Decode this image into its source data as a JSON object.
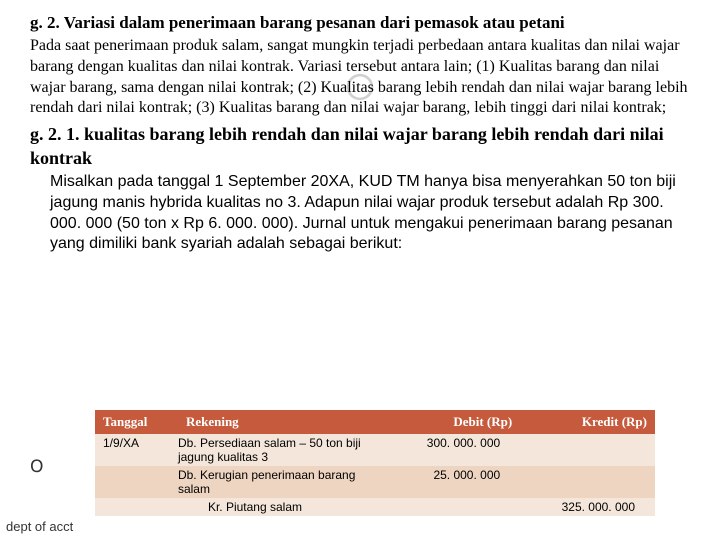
{
  "watermark_glyph": "○",
  "heading1": "g. 2. Variasi dalam penerimaan barang pesanan dari pemasok atau petani",
  "para1": "Pada saat penerimaan produk salam, sangat mungkin terjadi perbedaan antara kualitas dan nilai wajar barang dengan kualitas dan nilai kontrak. Variasi tersebut antara lain; (1) Kualitas barang dan nilai wajar barang, sama dengan nilai kontrak; (2) Kualitas barang lebih rendah dan nilai wajar barang lebih rendah dari nilai kontrak; (3) Kualitas barang dan nilai wajar barang, lebih tinggi dari nilai kontrak;",
  "heading2": "g. 2. 1. kualitas barang lebih rendah dan nilai wajar barang lebih rendah dari nilai kontrak",
  "para2": "Misalkan pada tanggal 1 September 20XA, KUD TM hanya bisa menyerahkan 50 ton biji jagung manis hybrida kualitas no 3. Adapun nilai wajar produk tersebut adalah Rp 300. 000. 000 (50 ton x Rp 6. 000. 000). Jurnal untuk mengakui penerimaan barang pesanan yang dimiliki bank syariah adalah sebagai berikut:",
  "table": {
    "header_bg": "#c55a3c",
    "row_odd_bg": "#f4e6da",
    "row_even_bg": "#eed5c2",
    "columns": [
      "Tanggal",
      "Rekening",
      "Debit (Rp)",
      "Kredit (Rp)"
    ],
    "rows": [
      {
        "tanggal": "1/9/XA",
        "rekening": "Db. Persediaan salam – 50 ton biji jagung kualitas 3",
        "debit": "300. 000. 000",
        "kredit": ""
      },
      {
        "tanggal": "",
        "rekening": "Db. Kerugian penerimaan barang salam",
        "debit": "25. 000. 000",
        "kredit": ""
      },
      {
        "tanggal": "",
        "rekening": "Kr. Piutang salam",
        "debit": "",
        "kredit": "325. 000. 000"
      }
    ]
  },
  "bullet_glyph": "౦",
  "footer": "dept of acct"
}
